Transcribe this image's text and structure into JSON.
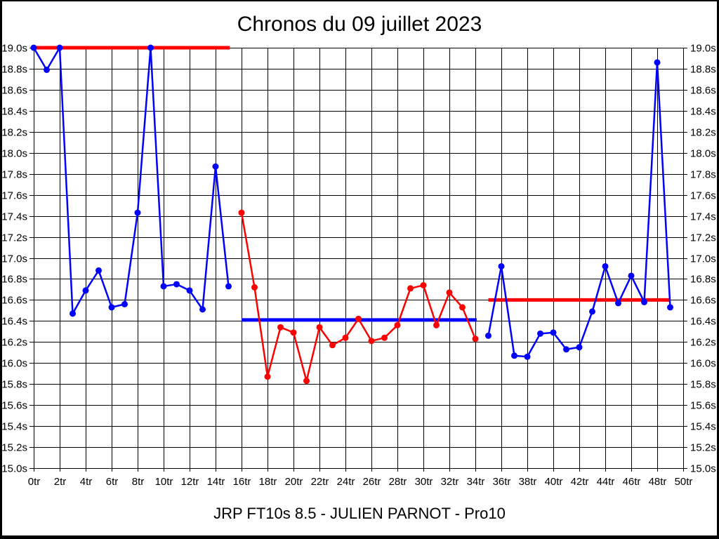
{
  "title": "Chronos du 09 juillet 2023",
  "caption": "JRP FT10s 8.5 - JULIEN PARNOT - Pro10",
  "colors": {
    "background": "#ffffff",
    "grid": "#000000",
    "text": "#000000",
    "blue_series": "#0000ff",
    "red_series": "#ff0000"
  },
  "chart_data": {
    "type": "line",
    "title": "Chronos du 09 juillet 2023",
    "xlabel": "",
    "ylabel": "",
    "x_unit": "tr",
    "y_unit": "s",
    "xlim": [
      0,
      50
    ],
    "ylim": [
      15.0,
      19.0
    ],
    "grid": true,
    "legend": "none",
    "y_ticks": {
      "values": [
        19.0,
        18.8,
        18.6,
        18.4,
        18.2,
        18.0,
        17.8,
        17.6,
        17.4,
        17.2,
        17.0,
        16.8,
        16.6,
        16.4,
        16.2,
        16.0,
        15.8,
        15.6,
        15.4,
        15.2,
        15.0
      ],
      "labels": [
        "19.0s",
        "18.8s",
        "18.6s",
        "18.4s",
        "18.2s",
        "18.0s",
        "17.8s",
        "17.6s",
        "17.4s",
        "17.2s",
        "17.0s",
        "16.8s",
        "16.6s",
        "16.4s",
        "16.2s",
        "16.0s",
        "15.8s",
        "15.6s",
        "15.4s",
        "15.2s",
        "15.0s"
      ]
    },
    "x_ticks": {
      "values": [
        0,
        2,
        4,
        6,
        8,
        10,
        12,
        14,
        16,
        18,
        20,
        22,
        24,
        26,
        28,
        30,
        32,
        34,
        36,
        38,
        40,
        42,
        44,
        46,
        48,
        50
      ],
      "labels": [
        "0tr",
        "2tr",
        "4tr",
        "6tr",
        "8tr",
        "10tr",
        "12tr",
        "14tr",
        "16tr",
        "18tr",
        "20tr",
        "22tr",
        "24tr",
        "26tr",
        "28tr",
        "30tr",
        "32tr",
        "34tr",
        "36tr",
        "38tr",
        "40tr",
        "42tr",
        "44tr",
        "46tr",
        "48tr",
        "50tr"
      ]
    },
    "series": [
      {
        "name": "run-1-blue",
        "color": "#0000ff",
        "start_x": 0,
        "values": [
          19.0,
          18.79,
          19.0,
          16.47,
          16.69,
          16.88,
          16.53,
          16.56,
          17.43,
          19.0,
          16.73,
          16.75,
          16.69,
          16.51,
          17.87,
          16.73
        ]
      },
      {
        "name": "run-2-red",
        "color": "#ff0000",
        "start_x": 16,
        "values": [
          17.43,
          16.72,
          15.87,
          16.34,
          16.29,
          15.83,
          16.34,
          16.17,
          16.24,
          16.42,
          16.21,
          16.24,
          16.36,
          16.71,
          16.74,
          16.36,
          16.67,
          16.53,
          16.23
        ]
      },
      {
        "name": "run-3-blue",
        "color": "#0000ff",
        "start_x": 35,
        "values": [
          16.26,
          16.92,
          16.07,
          16.06,
          16.28,
          16.29,
          16.13,
          16.15,
          16.49,
          16.92,
          16.57,
          16.83,
          16.58,
          18.86,
          16.53
        ]
      }
    ],
    "mean_lines": [
      {
        "name": "mean-run-1",
        "color": "#ff0000",
        "value": 19.0,
        "x_from": 0,
        "x_to": 15.1
      },
      {
        "name": "mean-run-2",
        "color": "#0000ff",
        "value": 16.41,
        "x_from": 16,
        "x_to": 34.1
      },
      {
        "name": "mean-run-3",
        "color": "#ff0000",
        "value": 16.6,
        "x_from": 35,
        "x_to": 49.0
      }
    ]
  }
}
